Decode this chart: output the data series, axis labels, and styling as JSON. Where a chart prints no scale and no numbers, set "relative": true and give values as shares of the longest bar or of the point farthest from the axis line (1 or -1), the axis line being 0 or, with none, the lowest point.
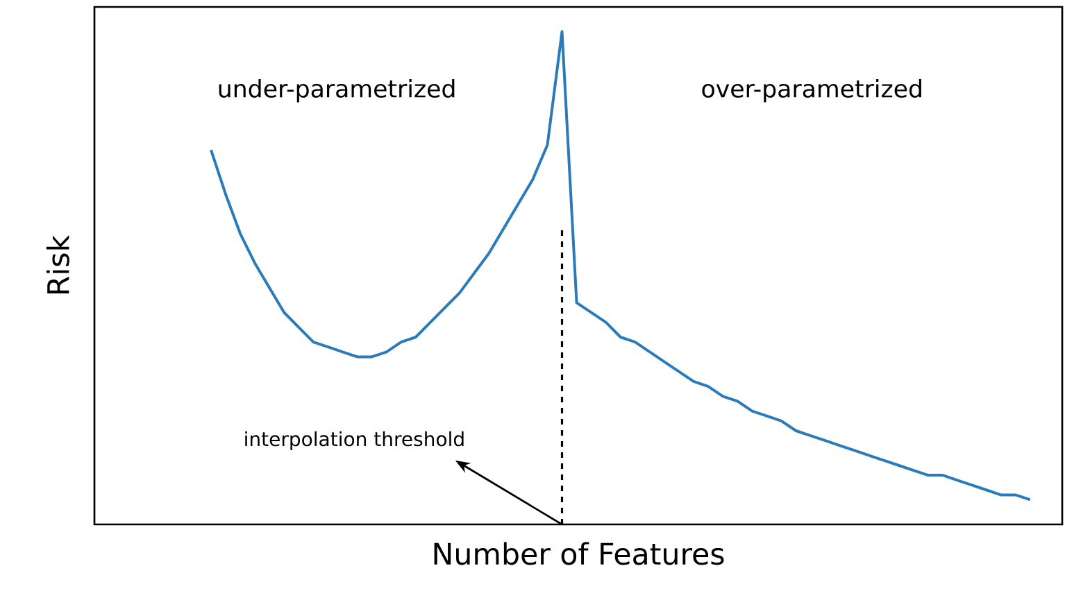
{
  "chart_data": {
    "type": "line",
    "relative": true,
    "xlabel": "Number of Features",
    "ylabel": "Risk",
    "color": "#2b7bba",
    "categories": [
      null,
      null,
      null,
      null,
      null,
      null,
      null,
      null,
      null,
      null,
      null,
      null,
      null,
      null,
      null,
      null,
      null,
      null,
      null,
      null,
      null,
      null,
      null,
      null,
      null,
      null,
      null,
      null,
      null,
      null,
      null,
      null,
      null,
      null,
      null,
      null,
      null,
      null,
      null,
      null,
      null,
      null,
      null,
      null,
      null,
      null,
      null,
      null,
      null,
      null,
      null,
      null,
      null,
      null,
      null,
      null,
      null
    ],
    "values": [
      0.76,
      0.67,
      0.59,
      0.53,
      0.48,
      0.43,
      0.4,
      0.37,
      0.36,
      0.35,
      0.34,
      0.34,
      0.35,
      0.37,
      0.38,
      0.41,
      0.44,
      0.47,
      0.51,
      0.55,
      0.6,
      0.65,
      0.7,
      0.77,
      1.0,
      0.45,
      0.43,
      0.41,
      0.38,
      0.37,
      0.35,
      0.33,
      0.31,
      0.29,
      0.28,
      0.26,
      0.25,
      0.23,
      0.22,
      0.21,
      0.19,
      0.18,
      0.17,
      0.16,
      0.15,
      0.14,
      0.13,
      0.12,
      0.11,
      0.1,
      0.1,
      0.09,
      0.08,
      0.07,
      0.06,
      0.06,
      0.05
    ],
    "annotations": [
      "under-parametrized",
      "over-parametrized",
      "interpolation threshold"
    ]
  }
}
